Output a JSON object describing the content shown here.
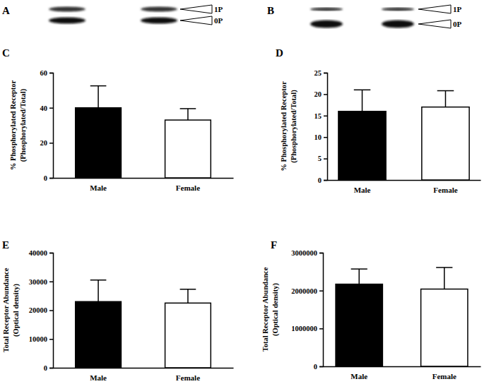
{
  "blots": [
    {
      "panel": "A",
      "bands": [
        "1P",
        "0P"
      ]
    },
    {
      "panel": "B",
      "bands": [
        "1P",
        "0P"
      ]
    }
  ],
  "chart_data": [
    {
      "type": "bar",
      "title": "C",
      "y_label": [
        "% Phosphorylated Receptor",
        "(Phosphorylated/Total)"
      ],
      "categories": [
        "Male",
        "Female"
      ],
      "values": [
        40,
        33
      ],
      "errors": [
        12.5,
        6.5
      ],
      "colors": [
        "#000000",
        "#ffffff"
      ],
      "ylim": [
        0,
        60
      ],
      "yticks": [
        0,
        20,
        40,
        60
      ]
    },
    {
      "type": "bar",
      "title": "D",
      "y_label": [
        "% Phosphorylated Receptor",
        "(Phosphorylated/Total)"
      ],
      "categories": [
        "Male",
        "Female"
      ],
      "values": [
        16,
        17
      ],
      "errors": [
        5,
        3.8
      ],
      "colors": [
        "#000000",
        "#ffffff"
      ],
      "ylim": [
        0,
        25
      ],
      "yticks": [
        0,
        5,
        10,
        15,
        20,
        25
      ]
    },
    {
      "type": "bar",
      "title": "E",
      "y_label": [
        "Total Receptor Abundance",
        "(Optical density)"
      ],
      "categories": [
        "Male",
        "Female"
      ],
      "values": [
        23000,
        22500
      ],
      "errors": [
        7500,
        4800
      ],
      "colors": [
        "#000000",
        "#ffffff"
      ],
      "ylim": [
        0,
        40000
      ],
      "yticks": [
        0,
        10000,
        20000,
        30000,
        40000
      ]
    },
    {
      "type": "bar",
      "title": "F",
      "y_label": [
        "Total Receptor Abundance",
        "(Optical density)"
      ],
      "categories": [
        "Male",
        "Female"
      ],
      "values": [
        2170000,
        2040000
      ],
      "errors": [
        400000,
        570000
      ],
      "colors": [
        "#000000",
        "#ffffff"
      ],
      "ylim": [
        0,
        3000000
      ],
      "yticks": [
        0,
        1000000,
        2000000,
        3000000
      ]
    }
  ]
}
